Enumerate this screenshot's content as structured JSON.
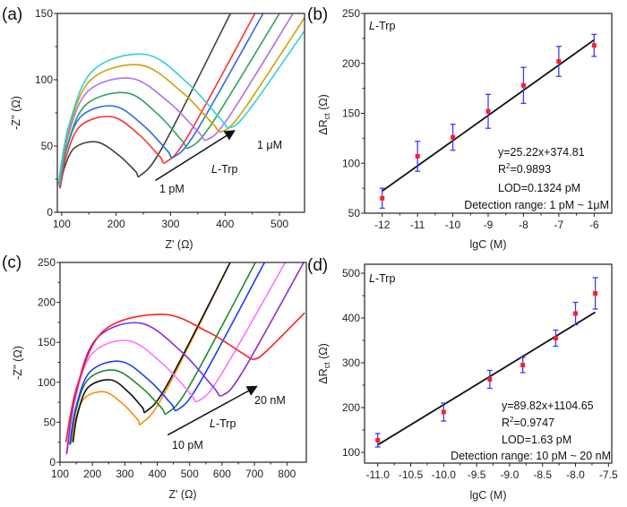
{
  "chart_data": [
    {
      "panel": "(a)",
      "type": "line",
      "xlabel": "Z' (Ω)",
      "ylabel": "-Z'' (Ω)",
      "xlim": [
        92,
        546
      ],
      "ylim": [
        0,
        150
      ],
      "xticks": [
        100,
        200,
        300,
        400,
        500
      ],
      "yticks": [
        0,
        50,
        100,
        150
      ],
      "series": [
        {
          "color": "#404040",
          "start": [
            97,
            18
          ],
          "peak": [
            165,
            53
          ],
          "min": [
            245,
            28
          ],
          "end": [
            410,
            150
          ]
        },
        {
          "color": "#ff3030",
          "start": [
            97,
            18
          ],
          "peak": [
            193,
            72
          ],
          "min": [
            292,
            38
          ],
          "end": [
            455,
            150
          ]
        },
        {
          "color": "#2a6cf0",
          "start": [
            96,
            19
          ],
          "peak": [
            197,
            80
          ],
          "min": [
            307,
            42
          ],
          "end": [
            470,
            150
          ]
        },
        {
          "color": "#2ea060",
          "start": [
            96,
            20
          ],
          "peak": [
            220,
            90
          ],
          "min": [
            335,
            49
          ],
          "end": [
            500,
            150
          ]
        },
        {
          "color": "#b070f0",
          "start": [
            95,
            20
          ],
          "peak": [
            228,
            101
          ],
          "min": [
            368,
            55
          ],
          "end": [
            525,
            150
          ]
        },
        {
          "color": "#d0a000",
          "start": [
            94,
            21
          ],
          "peak": [
            245,
            111
          ],
          "min": [
            395,
            61
          ],
          "end": [
            548,
            148
          ]
        },
        {
          "color": "#30d0d0",
          "start": [
            94,
            22
          ],
          "peak": [
            255,
            119
          ],
          "min": [
            410,
            64
          ],
          "end": [
            548,
            138
          ]
        }
      ],
      "arrow": {
        "from": [
          272,
          24
        ],
        "to": [
          415,
          61
        ]
      },
      "labels": {
        "low": "1 pM",
        "high": "1 μM",
        "analyte_italic": "L",
        "analyte_rest": "-Trp"
      }
    },
    {
      "panel": "(b)",
      "type": "scatter",
      "xlabel": "lgC (M)",
      "ylabel_parts": [
        "ΔR",
        "ct",
        " (Ω)"
      ],
      "xlim": [
        -12.5,
        -5.5
      ],
      "ylim": [
        50,
        250
      ],
      "xticks": [
        -12,
        -11,
        -10,
        -9,
        -8,
        -7,
        -6
      ],
      "yticks": [
        50,
        100,
        150,
        200,
        250
      ],
      "x": [
        -12,
        -11,
        -10,
        -9,
        -8,
        -7,
        -6
      ],
      "y": [
        65,
        107,
        126,
        152,
        178,
        202,
        218
      ],
      "error": [
        10,
        15,
        13,
        17,
        18,
        15,
        11
      ],
      "fit": {
        "slope": 25.22,
        "intercept": 374.81,
        "x_range": [
          -12,
          -6
        ]
      },
      "tag_italic": "L",
      "tag_rest": "-Trp",
      "equation": "y=25.22x+374.81",
      "r2_parts": [
        "R",
        "2",
        "=0.9893"
      ],
      "lod": "LOD=0.1324 pM",
      "range": "Detection range: 1 pM ~ 1μM",
      "colors": {
        "point": "#ff2020",
        "error": "#3a3aff",
        "fit": "#111111"
      }
    },
    {
      "panel": "(c)",
      "type": "line",
      "xlabel": "Z' (Ω)",
      "ylabel": "-Z'' (Ω)",
      "xlim": [
        100,
        860
      ],
      "ylim": [
        0,
        250
      ],
      "xticks": [
        100,
        200,
        300,
        400,
        500,
        600,
        700,
        800
      ],
      "yticks": [
        0,
        50,
        100,
        150,
        200,
        250
      ],
      "series": [
        {
          "color": "#ff8c00",
          "start": [
            135,
            25
          ],
          "peak": [
            238,
            88
          ],
          "min": [
            353,
            49
          ],
          "end": [
            625,
            250
          ]
        },
        {
          "color": "#111111",
          "start": [
            140,
            25
          ],
          "peak": [
            257,
            103
          ],
          "min": [
            367,
            64
          ],
          "end": [
            625,
            250
          ]
        },
        {
          "color": "#1a8a2a",
          "start": [
            132,
            22
          ],
          "peak": [
            270,
            115
          ],
          "min": [
            432,
            62
          ],
          "end": [
            703,
            250
          ]
        },
        {
          "color": "#1a3cff",
          "start": [
            130,
            22
          ],
          "peak": [
            289,
            126
          ],
          "min": [
            464,
            66
          ],
          "end": [
            731,
            250
          ]
        },
        {
          "color": "#ff70ff",
          "start": [
            122,
            12
          ],
          "peak": [
            312,
            152
          ],
          "min": [
            528,
            77
          ],
          "end": [
            795,
            250
          ]
        },
        {
          "color": "#8a2be2",
          "start": [
            120,
            10
          ],
          "peak": [
            349,
            174
          ],
          "min": [
            602,
            84
          ],
          "end": [
            852,
            250
          ]
        },
        {
          "color": "#ff2020",
          "start": [
            118,
            25
          ],
          "peak": [
            418,
            185
          ],
          "min": [
            699,
            129
          ],
          "end": [
            855,
            187
          ]
        }
      ],
      "arrow": {
        "from": [
          432,
          34
        ],
        "to": [
          703,
          94
        ]
      },
      "labels": {
        "low": "10 pM",
        "high": "20 nM",
        "analyte_italic": "L",
        "analyte_rest": "-Trp"
      }
    },
    {
      "panel": "(d)",
      "type": "scatter",
      "xlabel": "lgC (M)",
      "ylabel_parts": [
        "ΔR",
        "ct",
        " (Ω)"
      ],
      "xlim": [
        -11.2,
        -7.45
      ],
      "ylim": [
        76,
        520
      ],
      "xticks": [
        -11.0,
        -10.5,
        -10.0,
        -9.5,
        -9.0,
        -8.5,
        -8.0,
        -7.5
      ],
      "xtick_labels": [
        "-11.0",
        "-10.5",
        "-10.0",
        "-9.5",
        "-9.0",
        "-8.5",
        "-8.0",
        "-7.5"
      ],
      "yticks": [
        100,
        200,
        300,
        400,
        500
      ],
      "x": [
        -11,
        -10,
        -9.3,
        -8.8,
        -8.3,
        -8,
        -7.7
      ],
      "y": [
        127,
        190,
        263,
        295,
        355,
        410,
        455
      ],
      "error": [
        15,
        20,
        20,
        17,
        18,
        25,
        35
      ],
      "fit": {
        "slope": 89.82,
        "intercept": 1104.65,
        "x_range": [
          -11,
          -7.7
        ]
      },
      "tag_italic": "L",
      "tag_rest": "-Trp",
      "equation": "y=89.82x+1104.65",
      "r2_parts": [
        "R",
        "2",
        "=0.9747"
      ],
      "lod": "LOD=1.63 pM",
      "range": "Detection range: 10 pM ~ 20 nM",
      "colors": {
        "point": "#ff2020",
        "error": "#3a3aff",
        "fit": "#111111"
      }
    }
  ]
}
